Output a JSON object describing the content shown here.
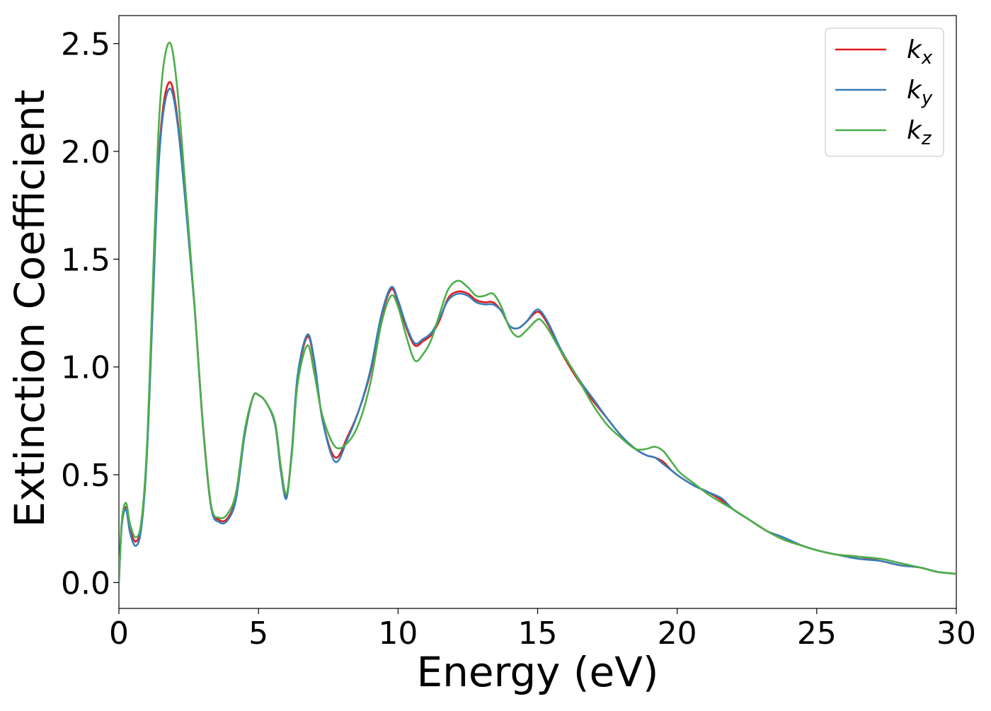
{
  "chart_data": {
    "type": "line",
    "xlabel": "Energy (eV)",
    "ylabel": "Extinction Coefficient",
    "xlim": [
      0,
      30
    ],
    "ylim": [
      -0.12,
      2.63
    ],
    "x_ticks": [
      0,
      5,
      10,
      15,
      20,
      25,
      30
    ],
    "x_tick_labels": [
      "0",
      "5",
      "10",
      "15",
      "20",
      "25",
      "30"
    ],
    "y_ticks": [
      0.0,
      0.5,
      1.0,
      1.5,
      2.0,
      2.5
    ],
    "y_tick_labels": [
      "0.0",
      "0.5",
      "1.0",
      "1.5",
      "2.0",
      "2.5"
    ],
    "grid": false,
    "legend_position": "top-right",
    "x": [
      0,
      0.1,
      0.25,
      0.4,
      0.6,
      0.8,
      1.0,
      1.2,
      1.4,
      1.6,
      1.85,
      2.1,
      2.4,
      2.7,
      3.0,
      3.3,
      3.6,
      3.9,
      4.2,
      4.5,
      4.8,
      5.0,
      5.3,
      5.6,
      5.8,
      6.0,
      6.2,
      6.4,
      6.75,
      7.0,
      7.3,
      7.75,
      8.2,
      8.6,
      9.0,
      9.4,
      9.75,
      10.0,
      10.3,
      10.6,
      10.9,
      11.2,
      11.5,
      11.8,
      12.15,
      12.5,
      12.8,
      13.1,
      13.4,
      13.7,
      14.0,
      14.3,
      14.6,
      14.9,
      15.1,
      15.4,
      15.8,
      16.2,
      16.6,
      17.0,
      17.5,
      18.0,
      18.5,
      18.9,
      19.2,
      19.5,
      19.8,
      20.1,
      20.6,
      21.1,
      21.6,
      22.0,
      22.6,
      23.2,
      23.8,
      24.5,
      25.0,
      25.7,
      26.5,
      27.3,
      28.0,
      28.7,
      29.3,
      30.0
    ],
    "series": [
      {
        "name": "k_x",
        "label": "k",
        "subscript": "x",
        "color": "#e41a1c",
        "values": [
          0.0,
          0.27,
          0.35,
          0.25,
          0.19,
          0.27,
          0.6,
          1.25,
          1.9,
          2.22,
          2.32,
          2.15,
          1.75,
          1.3,
          0.75,
          0.36,
          0.29,
          0.3,
          0.4,
          0.68,
          0.86,
          0.87,
          0.83,
          0.73,
          0.52,
          0.4,
          0.62,
          0.95,
          1.14,
          1.02,
          0.75,
          0.58,
          0.68,
          0.8,
          0.97,
          1.23,
          1.36,
          1.3,
          1.18,
          1.1,
          1.12,
          1.15,
          1.22,
          1.32,
          1.35,
          1.34,
          1.31,
          1.3,
          1.3,
          1.26,
          1.19,
          1.18,
          1.21,
          1.25,
          1.25,
          1.19,
          1.08,
          0.99,
          0.91,
          0.84,
          0.76,
          0.68,
          0.62,
          0.59,
          0.58,
          0.56,
          0.52,
          0.49,
          0.45,
          0.42,
          0.38,
          0.34,
          0.29,
          0.24,
          0.2,
          0.17,
          0.15,
          0.13,
          0.12,
          0.1,
          0.08,
          0.07,
          0.05,
          0.04
        ]
      },
      {
        "name": "k_y",
        "label": "k",
        "subscript": "y",
        "color": "#377eb8",
        "values": [
          0.0,
          0.26,
          0.34,
          0.23,
          0.17,
          0.25,
          0.58,
          1.23,
          1.88,
          2.19,
          2.29,
          2.13,
          1.74,
          1.29,
          0.74,
          0.35,
          0.28,
          0.29,
          0.39,
          0.68,
          0.86,
          0.87,
          0.83,
          0.73,
          0.52,
          0.39,
          0.62,
          0.96,
          1.15,
          1.03,
          0.75,
          0.56,
          0.67,
          0.8,
          0.98,
          1.24,
          1.37,
          1.31,
          1.19,
          1.11,
          1.13,
          1.16,
          1.23,
          1.31,
          1.34,
          1.33,
          1.3,
          1.29,
          1.29,
          1.26,
          1.19,
          1.18,
          1.21,
          1.26,
          1.26,
          1.2,
          1.09,
          1.0,
          0.92,
          0.85,
          0.76,
          0.68,
          0.62,
          0.59,
          0.58,
          0.55,
          0.52,
          0.49,
          0.45,
          0.42,
          0.39,
          0.34,
          0.29,
          0.24,
          0.21,
          0.17,
          0.15,
          0.13,
          0.11,
          0.1,
          0.08,
          0.07,
          0.05,
          0.04
        ]
      },
      {
        "name": "k_z",
        "label": "k",
        "subscript": "z",
        "color": "#4daf4a",
        "values": [
          0.0,
          0.28,
          0.37,
          0.27,
          0.21,
          0.28,
          0.62,
          1.33,
          2.05,
          2.4,
          2.5,
          2.28,
          1.8,
          1.3,
          0.74,
          0.36,
          0.3,
          0.32,
          0.42,
          0.7,
          0.86,
          0.87,
          0.83,
          0.74,
          0.54,
          0.41,
          0.6,
          0.92,
          1.1,
          0.97,
          0.77,
          0.63,
          0.65,
          0.74,
          0.92,
          1.2,
          1.33,
          1.28,
          1.14,
          1.03,
          1.06,
          1.13,
          1.25,
          1.36,
          1.4,
          1.37,
          1.33,
          1.33,
          1.34,
          1.28,
          1.18,
          1.14,
          1.17,
          1.21,
          1.22,
          1.17,
          1.08,
          1.0,
          0.91,
          0.82,
          0.73,
          0.67,
          0.62,
          0.62,
          0.63,
          0.61,
          0.56,
          0.51,
          0.46,
          0.41,
          0.37,
          0.34,
          0.29,
          0.24,
          0.2,
          0.17,
          0.15,
          0.13,
          0.12,
          0.11,
          0.09,
          0.07,
          0.05,
          0.04
        ]
      }
    ]
  }
}
